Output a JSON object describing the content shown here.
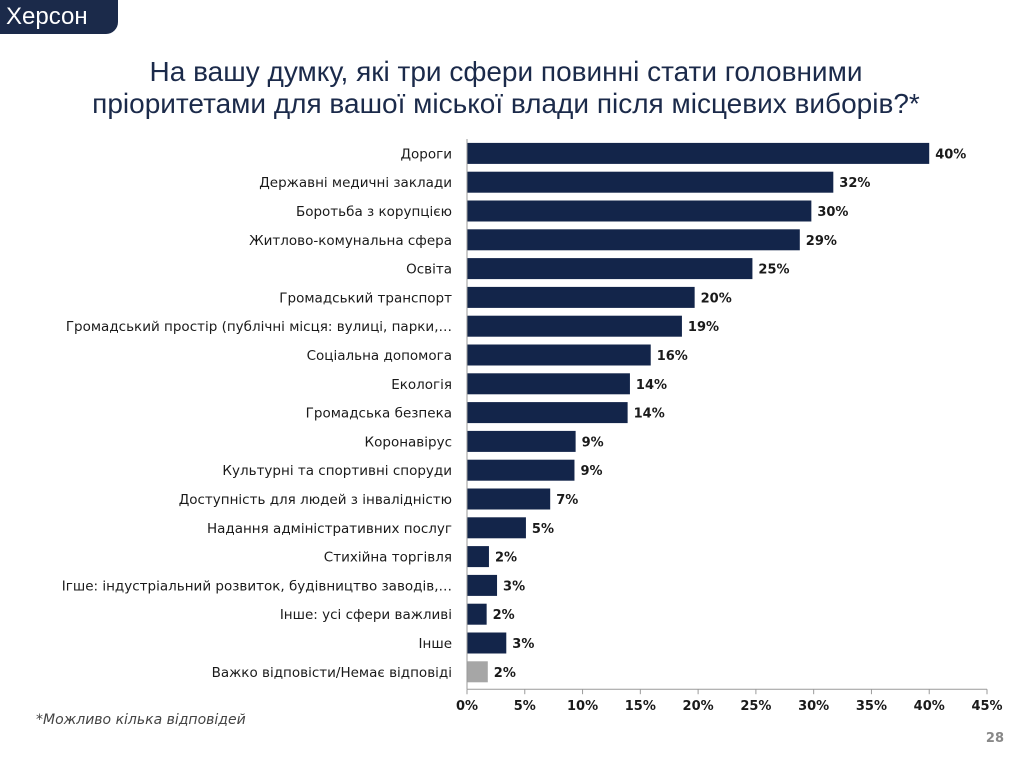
{
  "header": {
    "badge": "Херсон",
    "title_line1": "На вашу думку, які три сфери повинні стати головними",
    "title_line2": "пріоритетами для вашої міської влади після місцевих виборів?*"
  },
  "footer": {
    "footnote": "*Можливо кілька відповідей",
    "page_number": "28"
  },
  "colors": {
    "bar": "#13254a",
    "bar_no_answer": "#a6a6a6"
  },
  "chart_data": {
    "type": "bar",
    "orientation": "horizontal",
    "categories": [
      "Дороги",
      "Державні медичні заклади",
      "Боротьба з корупцією",
      "Житлово-комунальна сфера",
      "Освіта",
      "Громадський транспорт",
      "Громадський простір (публічні місця: вулиці, парки,…",
      "Соціальна допомога",
      "Екологія",
      "Громадська безпека",
      "Коронавірус",
      "Культурні та спортивні споруди",
      "Доступність для людей з інвалідністю",
      "Надання адміністративних послуг",
      "Стихійна торгівля",
      "Ігше: індустріальний розвиток, будівництво заводів,…",
      "Інше: усі сфери важливі",
      "Інше",
      "Важко відповісти/Немає відповіді"
    ],
    "values": [
      40,
      31.7,
      29.8,
      28.8,
      24.7,
      19.7,
      18.6,
      15.9,
      14.1,
      13.9,
      9.4,
      9.3,
      7.2,
      5.1,
      1.9,
      2.6,
      1.7,
      3.4,
      1.8
    ],
    "data_labels": [
      "40%",
      "32%",
      "30%",
      "29%",
      "25%",
      "20%",
      "19%",
      "16%",
      "14%",
      "14%",
      "9%",
      "9%",
      "7%",
      "5%",
      "2%",
      "3%",
      "2%",
      "3%",
      "2%"
    ],
    "highlight_index": 18,
    "x_ticks": [
      "0%",
      "5%",
      "10%",
      "15%",
      "20%",
      "25%",
      "30%",
      "35%",
      "40%",
      "45%"
    ],
    "xlim": [
      0,
      45
    ],
    "unit": "%",
    "legend": "none",
    "grid": false
  }
}
